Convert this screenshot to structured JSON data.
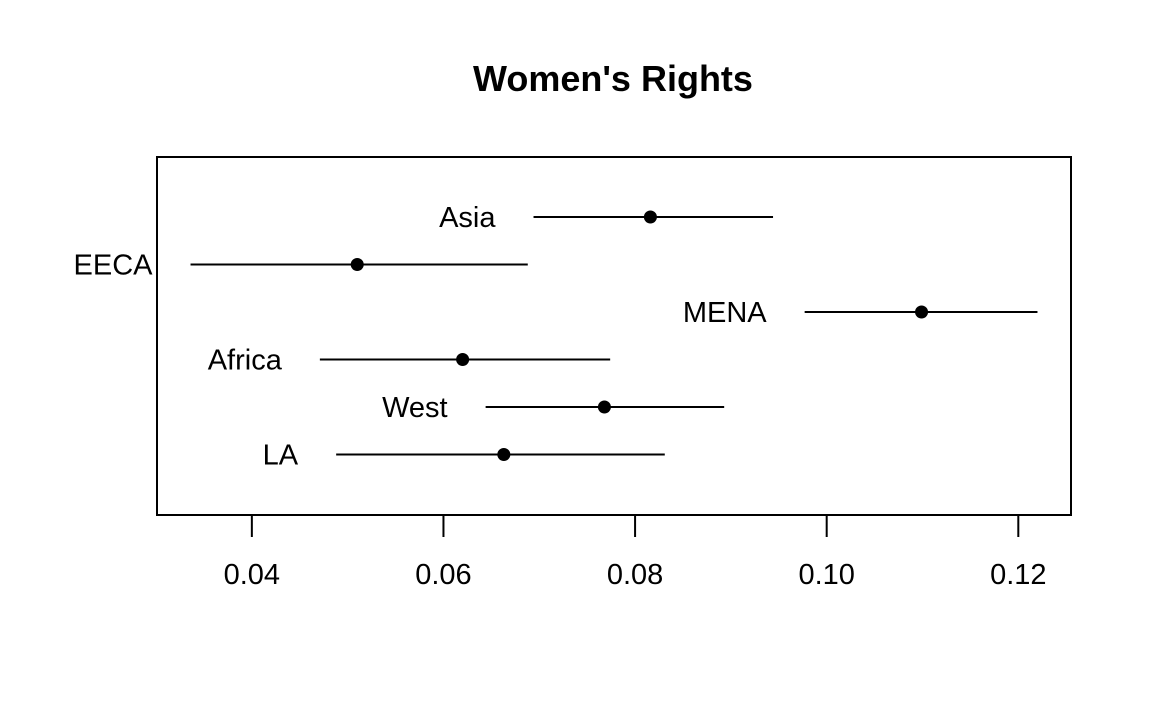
{
  "chart_data": {
    "type": "dot-interval",
    "title": "Women's Rights",
    "xlabel": "",
    "ylabel": "",
    "xlim": [
      0.0301,
      0.1255
    ],
    "xticks": [
      0.04,
      0.06,
      0.08,
      0.1,
      0.12
    ],
    "xtick_labels": [
      "0.04",
      "0.06",
      "0.08",
      "0.10",
      "0.12"
    ],
    "grid": false,
    "point_color": "#000000",
    "line_color": "#000000",
    "regions": [
      {
        "label": "Asia",
        "estimate": 0.0816,
        "lower": 0.0694,
        "upper": 0.0944
      },
      {
        "label": "EECA",
        "estimate": 0.051,
        "lower": 0.0336,
        "upper": 0.0688
      },
      {
        "label": "MENA",
        "estimate": 0.1099,
        "lower": 0.0977,
        "upper": 0.122
      },
      {
        "label": "Africa",
        "estimate": 0.062,
        "lower": 0.0471,
        "upper": 0.0774
      },
      {
        "label": "West",
        "estimate": 0.0768,
        "lower": 0.0644,
        "upper": 0.0893
      },
      {
        "label": "LA",
        "estimate": 0.0663,
        "lower": 0.0488,
        "upper": 0.0831
      }
    ]
  }
}
